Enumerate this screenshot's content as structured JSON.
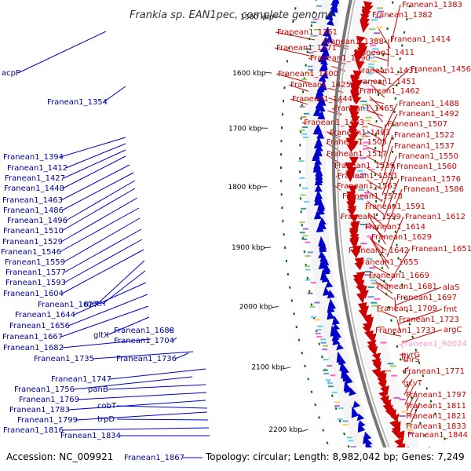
{
  "title": "Frankia sp. EAN1pec, complete genome",
  "footer": {
    "accession": "Accession: NC_009921",
    "summary": "Topology: circular; Length: 8,982,042 bp; Genes: 7,249",
    "bottom_gene": "Franean1_1867"
  },
  "colors": {
    "minus_strand": "#0000cc",
    "plus_strand": "#cc0000",
    "rna": "#ff99cc",
    "backbone": "#777777",
    "tick": "#006600"
  },
  "scale_ticks": [
    "1500 kbp",
    "1600 kbp",
    "1700 kbp",
    "1800 kbp",
    "1900 kbp",
    "2000 kbp",
    "2100 kbp",
    "2200 kbp"
  ],
  "left_labels": [
    "acpP",
    "Franean1_1354",
    "Franean1_1394",
    "Franean1_1412",
    "Franean1_1427",
    "Franean1_1448",
    "Franean1_1463",
    "Franean1_1486",
    "Franean1_1496",
    "Franean1_1510",
    "Franean1_1529",
    "Franean1_1546",
    "Franean1_1559",
    "Franean1_1577",
    "Franean1_1593",
    "Franean1_1604",
    "Franean1_1627",
    "metH",
    "Franean1_1644",
    "Franean1_1656",
    "Franean1_1667",
    "gltX",
    "Franean1_1688",
    "Franean1_1682",
    "Franean1_1704",
    "Franean1_1735",
    "Franean1_1736",
    "Franean1_1747",
    "Franean1_1756",
    "panB",
    "Franean1_1769",
    "Franean1_1783",
    "cobT",
    "Franean1_1799",
    "trpD",
    "Franean1_1816",
    "Franean1_1834"
  ],
  "right_labels": [
    "Franean1_1383",
    "Franean1_1382",
    "Franean1_1361",
    "Franean1_1388",
    "Franean1_1414",
    "Franean1_1371",
    "Franean1_1411",
    "Franean1_1390",
    "Franean1_1456",
    "Franean1_1431",
    "Franean1_1400",
    "Franean1_1451",
    "Franean1_1425",
    "Franean1_1462",
    "Franean1_1444",
    "Franean1_1488",
    "Franean1_1465",
    "Franean1_1492",
    "Franean1_1483",
    "Franean1_1507",
    "Franean1_1493",
    "Franean1_1522",
    "Franean1_1505",
    "Franean1_1537",
    "Franean1_1517",
    "Franean1_1550",
    "Franean1_1539",
    "Franean1_1560",
    "Franean1_1551",
    "Franean1_1576",
    "Franean1_1563",
    "Franean1_1586",
    "Franean1_1578",
    "Franean1_1591",
    "Franean1_1599",
    "Franean1_1612",
    "Franean1_1614",
    "Franean1_1629",
    "Franean1_1642",
    "Franean1_1651",
    "Franean1_1655",
    "Franean1_1669",
    "Franean1_1681",
    "alaS",
    "Franean1_1697",
    "Franean1_1709",
    "fmt",
    "Franean1_1723",
    "Franean1_1733",
    "argC",
    "Franean1_R0024",
    "pyrG",
    "thrS",
    "Franean1_1771",
    "gcvT",
    "Franean1_1797",
    "Franean1_1811",
    "Franean1_1821",
    "Franean1_1833",
    "Franean1_1844"
  ]
}
